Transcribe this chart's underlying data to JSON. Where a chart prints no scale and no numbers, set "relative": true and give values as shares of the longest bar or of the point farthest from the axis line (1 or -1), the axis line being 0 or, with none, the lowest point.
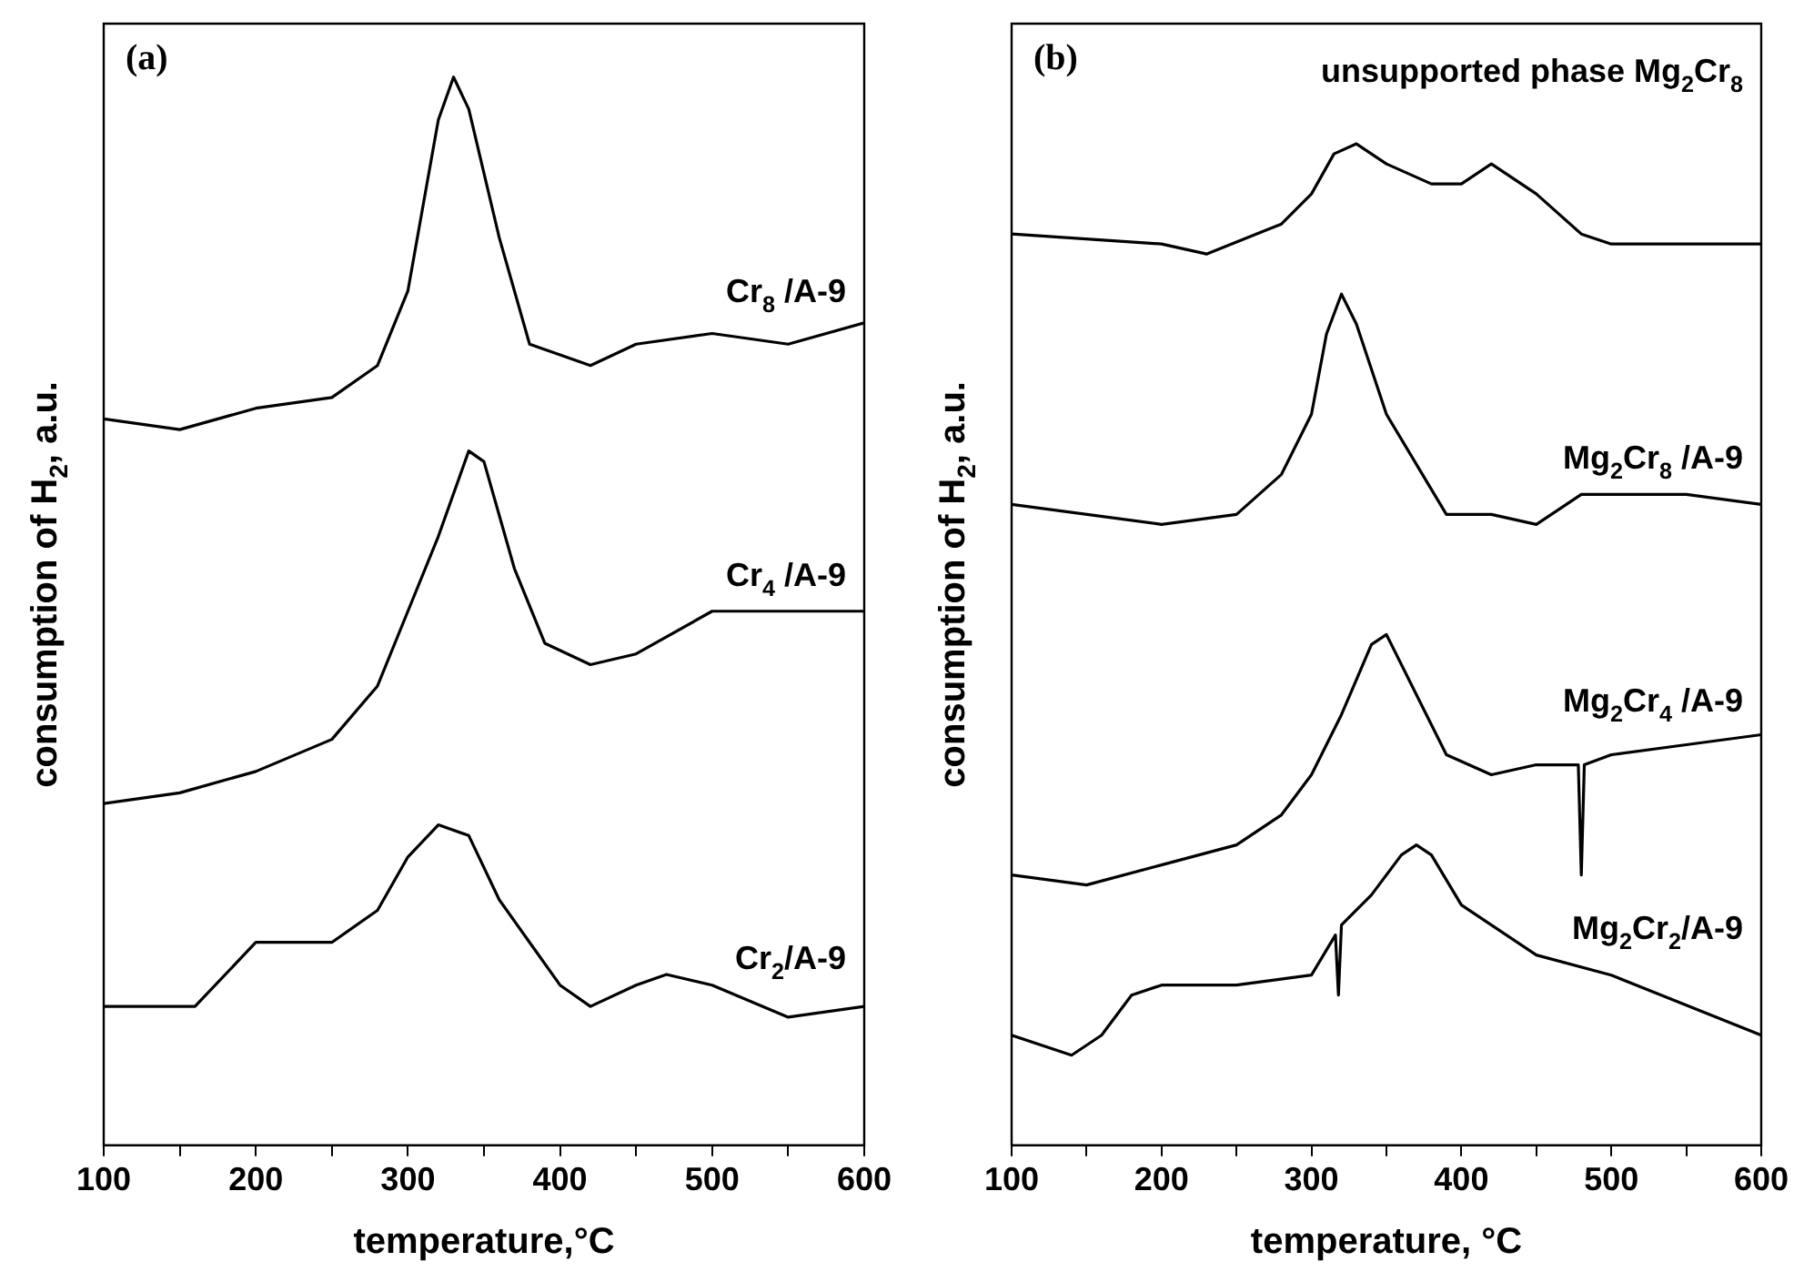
{
  "chart_data": [
    {
      "type": "line",
      "title": "(a)",
      "xlabel": "temperature,°C",
      "ylabel": "consumption of H$_{2}$, a.u.",
      "relative": true,
      "xlim": [
        100,
        600
      ],
      "xticks": [
        100,
        {
          "value": 150,
          "label": null
        },
        200,
        {
          "value": 250,
          "label": null
        },
        300,
        {
          "value": 350,
          "label": null
        },
        400,
        {
          "value": 450,
          "label": null
        },
        500,
        {
          "value": 550,
          "label": null
        },
        600
      ],
      "legend": false,
      "grid": false,
      "series": [
        {
          "name": "Cr$_{8}$ /A-9",
          "color": "#000000",
          "x": [
            100,
            150,
            200,
            250,
            280,
            300,
            320,
            330,
            340,
            360,
            380,
            400,
            420,
            450,
            500,
            550,
            600
          ],
          "values": [
            0.68,
            0.67,
            0.69,
            0.7,
            0.73,
            0.8,
            0.96,
            1.0,
            0.97,
            0.85,
            0.75,
            0.74,
            0.73,
            0.75,
            0.76,
            0.75,
            0.77
          ]
        },
        {
          "name": "Cr$_{4}$ /A-9",
          "color": "#000000",
          "x": [
            100,
            150,
            200,
            250,
            280,
            300,
            320,
            340,
            350,
            370,
            390,
            420,
            450,
            500,
            550,
            600
          ],
          "values": [
            0.32,
            0.33,
            0.35,
            0.38,
            0.43,
            0.5,
            0.57,
            0.65,
            0.64,
            0.54,
            0.47,
            0.45,
            0.46,
            0.5,
            0.5,
            0.5
          ]
        },
        {
          "name": "Cr$_{2}$/A-9",
          "color": "#000000",
          "x": [
            100,
            160,
            200,
            250,
            280,
            300,
            320,
            340,
            360,
            380,
            400,
            420,
            450,
            470,
            500,
            550,
            600
          ],
          "values": [
            0.13,
            0.13,
            0.19,
            0.19,
            0.22,
            0.27,
            0.3,
            0.29,
            0.23,
            0.19,
            0.15,
            0.13,
            0.15,
            0.16,
            0.15,
            0.12,
            0.13
          ]
        }
      ]
    },
    {
      "type": "line",
      "title": "(b)",
      "xlabel": "temperature, °C",
      "ylabel": "consumption of H$_{2}$, a.u.",
      "relative": true,
      "xlim": [
        100,
        600
      ],
      "xticks": [
        100,
        {
          "value": 150,
          "label": null
        },
        200,
        {
          "value": 250,
          "label": null
        },
        300,
        {
          "value": 350,
          "label": null
        },
        400,
        {
          "value": 450,
          "label": null
        },
        500,
        {
          "value": 550,
          "label": null
        },
        600
      ],
      "legend": false,
      "grid": false,
      "series": [
        {
          "name": "unsupported phase Mg$_{2}$Cr$_{8}$",
          "color": "#000000",
          "x": [
            100,
            200,
            230,
            280,
            300,
            315,
            330,
            350,
            380,
            400,
            420,
            450,
            480,
            500,
            550,
            600
          ],
          "values": [
            0.91,
            0.9,
            0.89,
            0.92,
            0.95,
            0.99,
            1.0,
            0.98,
            0.96,
            0.96,
            0.98,
            0.95,
            0.91,
            0.9,
            0.9,
            0.9
          ]
        },
        {
          "name": "Mg$_{2}$Cr$_{8}$ /A-9",
          "color": "#000000",
          "x": [
            100,
            200,
            250,
            280,
            300,
            310,
            320,
            330,
            350,
            370,
            390,
            420,
            450,
            480,
            550,
            600
          ],
          "values": [
            0.64,
            0.62,
            0.63,
            0.67,
            0.73,
            0.81,
            0.85,
            0.82,
            0.73,
            0.68,
            0.63,
            0.63,
            0.62,
            0.65,
            0.65,
            0.64
          ]
        },
        {
          "name": "Mg$_{2}$Cr$_{4}$ /A-9",
          "color": "#000000",
          "x": [
            100,
            150,
            200,
            250,
            280,
            300,
            320,
            340,
            350,
            370,
            390,
            420,
            450,
            478,
            480,
            482,
            500,
            550,
            600
          ],
          "values": [
            0.27,
            0.26,
            0.28,
            0.3,
            0.33,
            0.37,
            0.43,
            0.5,
            0.51,
            0.45,
            0.39,
            0.37,
            0.38,
            0.38,
            0.27,
            0.38,
            0.39,
            0.4,
            0.41
          ]
        },
        {
          "name": "Mg$_{2}$Cr$_{2}$/A-9",
          "color": "#000000",
          "x": [
            100,
            140,
            160,
            180,
            200,
            250,
            300,
            316,
            318,
            320,
            340,
            360,
            370,
            380,
            400,
            450,
            500,
            550,
            600
          ],
          "values": [
            0.11,
            0.09,
            0.11,
            0.15,
            0.16,
            0.16,
            0.17,
            0.21,
            0.15,
            0.22,
            0.25,
            0.29,
            0.3,
            0.29,
            0.24,
            0.19,
            0.17,
            0.14,
            0.11
          ]
        }
      ]
    }
  ]
}
